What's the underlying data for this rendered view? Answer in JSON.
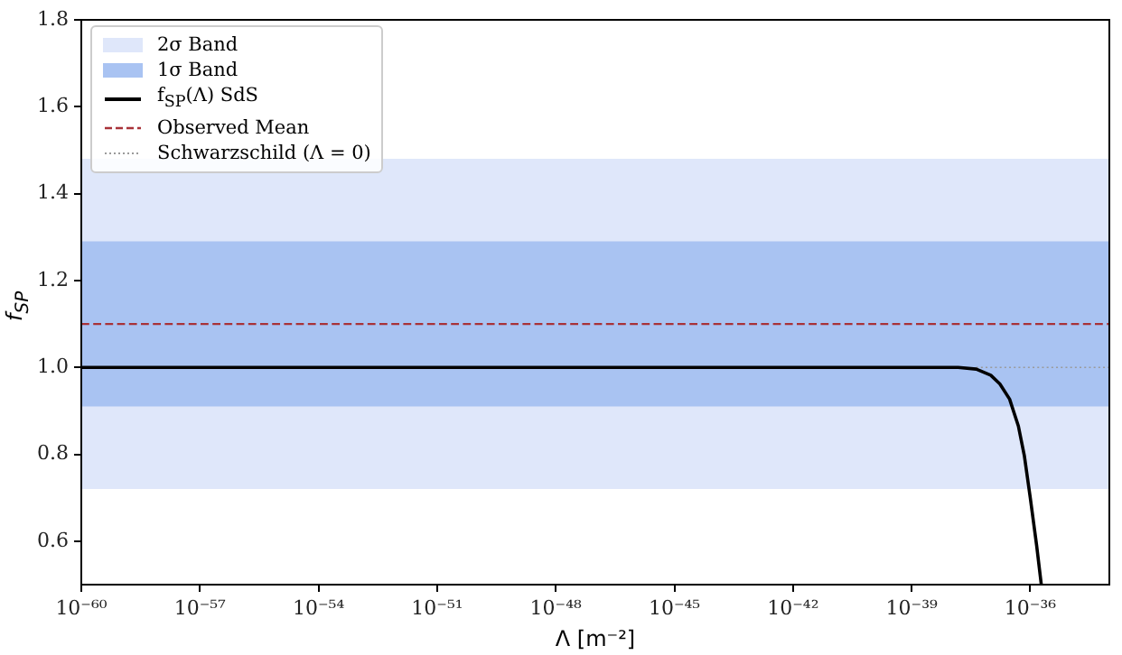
{
  "chart_data": {
    "type": "line",
    "xlabel": "Λ [m⁻²]",
    "ylabel": "f$_{SP}$",
    "log": "x",
    "xlim": [
      1e-60,
      1e-34
    ],
    "xticks": [
      {
        "value": 1e-60,
        "label": "10⁻⁶⁰"
      },
      {
        "value": 1e-57,
        "label": "10⁻⁵⁷"
      },
      {
        "value": 1e-54,
        "label": "10⁻⁵⁴"
      },
      {
        "value": 1e-51,
        "label": "10⁻⁵¹"
      },
      {
        "value": 1e-48,
        "label": "10⁻⁴⁸"
      },
      {
        "value": 1e-45,
        "label": "10⁻⁴⁵"
      },
      {
        "value": 1e-42,
        "label": "10⁻⁴²"
      },
      {
        "value": 1e-39,
        "label": "10⁻³⁹"
      },
      {
        "value": 1e-36,
        "label": "10⁻³⁶"
      }
    ],
    "ylim": [
      0.5,
      1.8
    ],
    "yticks": [
      {
        "value": 0.6,
        "label": "0.6"
      },
      {
        "value": 0.8,
        "label": "0.8"
      },
      {
        "value": 1,
        "label": "1.0"
      },
      {
        "value": 1.2,
        "label": "1.2"
      },
      {
        "value": 1.4,
        "label": "1.4"
      },
      {
        "value": 1.6,
        "label": "1.6"
      },
      {
        "value": 1.8,
        "label": "1.8"
      }
    ],
    "series": [
      {
        "name": "f$_{SP}$(Λ) SdS",
        "color": "#000000",
        "line_style": "solid",
        "x": [
          1e-60,
          1e-50,
          1e-40,
          3.2e-39,
          1.5e-38,
          4.3e-38,
          1e-37,
          1.7e-37,
          3e-37,
          5e-37,
          7.1e-37,
          1e-36,
          1.45e-36,
          1.9e-36
        ],
        "values": [
          1.0,
          1.0,
          1.0,
          1.0,
          1.0,
          0.996,
          0.982,
          0.962,
          0.927,
          0.865,
          0.796,
          0.7,
          0.59,
          0.5
        ]
      },
      {
        "name": "Schwarzschild (Λ = 0)",
        "color": "#9a9a9a",
        "line_style": "dotted",
        "x": [
          4.3e-38,
          1e-34
        ],
        "values": [
          1.0,
          1.0
        ]
      }
    ],
    "bands": [
      {
        "axis": "y",
        "from": 0.72,
        "to": 1.48,
        "label": "2σ Band",
        "color": "#dfe7fa"
      },
      {
        "axis": "y",
        "from": 0.91,
        "to": 1.29,
        "label": "1σ Band",
        "color": "#a9c3f2"
      }
    ],
    "ref_lines": [
      {
        "axis": "y",
        "value": 1.1,
        "label": "Observed Mean",
        "color": "#a83238",
        "line_style": "dashed"
      }
    ],
    "marker": "none",
    "legend": "top left"
  }
}
